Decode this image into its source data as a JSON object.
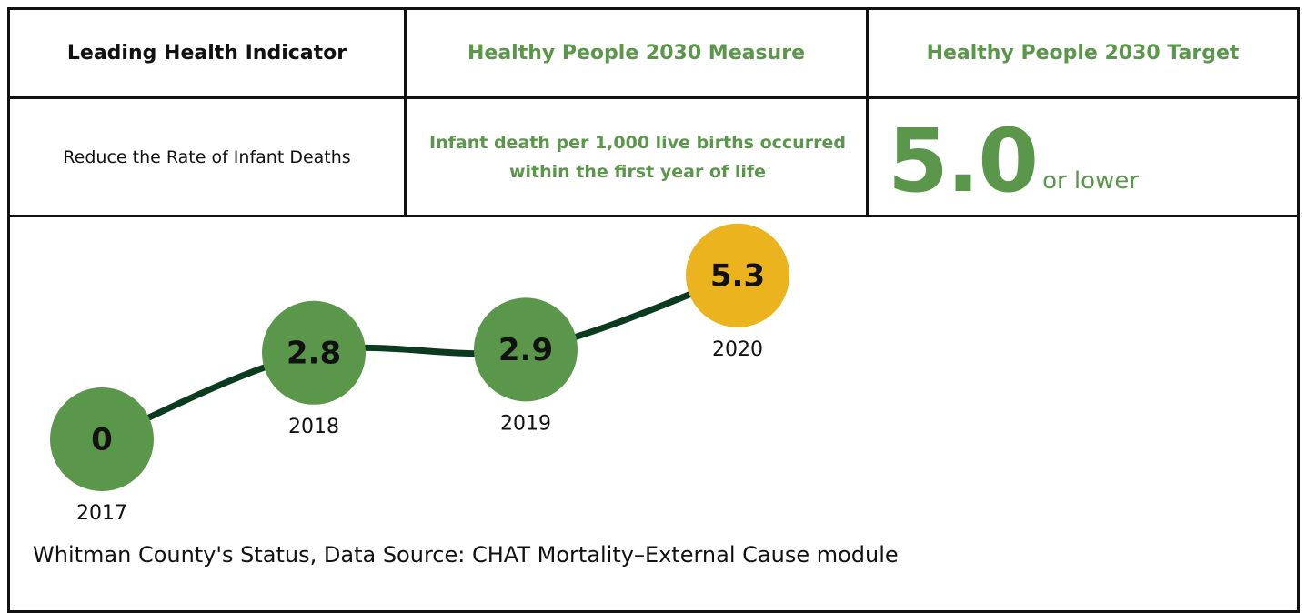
{
  "table": {
    "headers": [
      "Leading Health Indicator",
      "Healthy People 2030 Measure",
      "Healthy People 2030 Target"
    ],
    "indicator": "Reduce the Rate of Infant Deaths",
    "measure": "Infant death per 1,000 live births occurred within the first year of life",
    "target": "5.0",
    "target_note": "or lower"
  },
  "chart_data": {
    "type": "line",
    "categories": [
      "2017",
      "2018",
      "2019",
      "2020"
    ],
    "values": [
      0,
      2.8,
      2.9,
      5.3
    ],
    "colors": [
      "#5b974b",
      "#5b974b",
      "#5b974b",
      "#ebb41f"
    ],
    "line_color": "#0b3b1f",
    "caption": "Whitman County's Status, Data Source: CHAT Mortality–External Cause module"
  }
}
